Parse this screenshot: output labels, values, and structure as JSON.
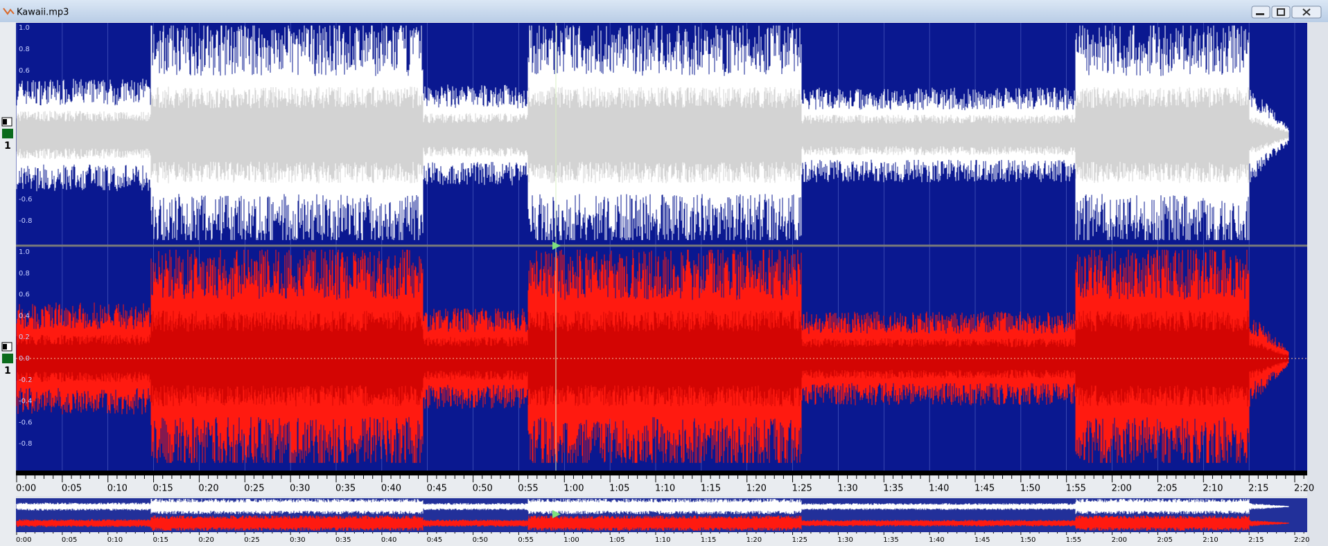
{
  "window": {
    "title": "Kawaii.mp3"
  },
  "channels": [
    {
      "label": "1",
      "amplitude_labels": [
        "1.0",
        "0.8",
        "0.6",
        "-0.6",
        "-0.8"
      ]
    },
    {
      "label": "1",
      "amplitude_labels": [
        "1.0",
        "0.8",
        "0.6",
        "0.4",
        "0.2",
        "0.0",
        "-0.2",
        "-0.4",
        "-0.6",
        "-0.8"
      ]
    }
  ],
  "timeline": {
    "labels": [
      "0:00",
      "0:05",
      "0:10",
      "0:15",
      "0:20",
      "0:25",
      "0:30",
      "0:35",
      "0:40",
      "0:45",
      "0:50",
      "0:55",
      "1:00",
      "1:05",
      "1:10",
      "1:15",
      "1:20",
      "1:25",
      "1:30",
      "1:35",
      "1:40",
      "1:45",
      "1:50",
      "1:55",
      "2:00",
      "2:05",
      "2:10",
      "2:15",
      "2:20"
    ]
  }
}
